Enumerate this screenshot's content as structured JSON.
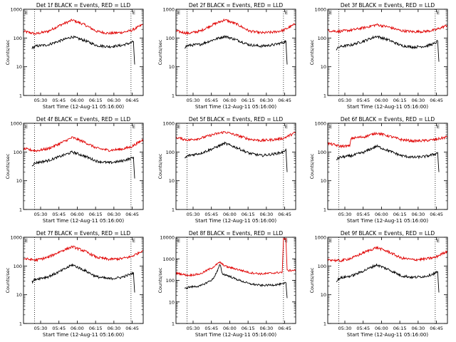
{
  "colors": {
    "events": "#000000",
    "lld": "#e00000",
    "axes": "#000000",
    "background": "#ffffff"
  },
  "common": {
    "ylabel": "Counts/sec",
    "xlabel": "Start Time (12-Aug-11 05:16:00)",
    "x_tick_labels": [
      "05:30",
      "05:45",
      "06:00",
      "06:15",
      "06:30",
      "06:45"
    ],
    "y_tick_labels": [
      "1",
      "10",
      "100",
      "1000"
    ],
    "y_tick_labels_det8": [
      "1",
      "10",
      "100",
      "1000",
      "10000"
    ],
    "marker_left": "E",
    "marker_right": "E"
  },
  "chart_data": [
    {
      "type": "line",
      "title": "Det 1f BLACK = Events, RED = LLD",
      "xlabel": "Start Time (12-Aug-11 05:16:00)",
      "ylabel": "Counts/sec",
      "xunits": "minutes after 05:16:00",
      "xlim": [
        0,
        98
      ],
      "ylim": [
        1,
        1000
      ],
      "yscale": "log",
      "vlines": [
        9,
        88
      ],
      "x_tick_values": [
        14,
        29,
        44,
        59,
        74,
        89
      ],
      "series": [
        {
          "name": "LLD",
          "color": "#e00000",
          "x": [
            0,
            10,
            20,
            30,
            40,
            50,
            60,
            70,
            80,
            88,
            93,
            98
          ],
          "values": [
            170,
            140,
            170,
            280,
            420,
            290,
            170,
            145,
            155,
            180,
            230,
            300
          ]
        },
        {
          "name": "Events",
          "color": "#000000",
          "x": [
            7,
            10,
            20,
            30,
            40,
            50,
            60,
            70,
            80,
            88,
            90,
            91
          ],
          "values": [
            45,
            52,
            58,
            80,
            110,
            82,
            55,
            50,
            55,
            68,
            75,
            12
          ]
        }
      ]
    },
    {
      "type": "line",
      "title": "Det 2f BLACK = Events, RED = LLD",
      "xlabel": "Start Time (12-Aug-11 05:16:00)",
      "ylabel": "Counts/sec",
      "xunits": "minutes after 05:16:00",
      "xlim": [
        0,
        98
      ],
      "ylim": [
        1,
        1000
      ],
      "yscale": "log",
      "vlines": [
        9,
        88
      ],
      "x_tick_values": [
        14,
        29,
        44,
        59,
        74,
        89
      ],
      "series": [
        {
          "name": "LLD",
          "color": "#e00000",
          "x": [
            0,
            10,
            20,
            30,
            40,
            50,
            60,
            70,
            80,
            88,
            93,
            98
          ],
          "values": [
            175,
            145,
            175,
            290,
            430,
            300,
            175,
            150,
            160,
            185,
            240,
            310
          ]
        },
        {
          "name": "Events",
          "color": "#000000",
          "x": [
            7,
            10,
            20,
            30,
            40,
            50,
            60,
            70,
            80,
            88,
            90,
            91
          ],
          "values": [
            48,
            55,
            60,
            85,
            115,
            85,
            58,
            52,
            58,
            70,
            78,
            12
          ]
        }
      ]
    },
    {
      "type": "line",
      "title": "Det 3f BLACK = Events, RED = LLD",
      "xlabel": "Start Time (12-Aug-11 05:16:00)",
      "ylabel": "Counts/sec",
      "xunits": "minutes after 05:16:00",
      "xlim": [
        0,
        98
      ],
      "ylim": [
        1,
        1000
      ],
      "yscale": "log",
      "vlines": [
        9,
        88
      ],
      "x_tick_values": [
        14,
        29,
        44,
        59,
        74,
        89
      ],
      "series": [
        {
          "name": "LLD",
          "color": "#e00000",
          "x": [
            0,
            10,
            20,
            30,
            40,
            50,
            60,
            70,
            80,
            88,
            93,
            98
          ],
          "values": [
            180,
            170,
            190,
            230,
            290,
            240,
            180,
            165,
            170,
            190,
            230,
            280
          ]
        },
        {
          "name": "Events",
          "color": "#000000",
          "x": [
            7,
            10,
            20,
            30,
            40,
            50,
            60,
            70,
            80,
            88,
            90,
            91
          ],
          "values": [
            40,
            50,
            58,
            80,
            115,
            85,
            55,
            48,
            52,
            65,
            80,
            15
          ]
        }
      ]
    },
    {
      "type": "line",
      "title": "Det 4f BLACK = Events, RED = LLD",
      "xlabel": "Start Time (12-Aug-11 05:16:00)",
      "ylabel": "Counts/sec",
      "xunits": "minutes after 05:16:00",
      "xlim": [
        0,
        98
      ],
      "ylim": [
        1,
        1000
      ],
      "yscale": "log",
      "vlines": [
        9,
        88
      ],
      "x_tick_values": [
        14,
        29,
        44,
        59,
        74,
        89
      ],
      "series": [
        {
          "name": "LLD",
          "color": "#e00000",
          "x": [
            0,
            10,
            20,
            30,
            40,
            50,
            60,
            70,
            80,
            88,
            93,
            98
          ],
          "values": [
            130,
            110,
            130,
            200,
            320,
            220,
            135,
            115,
            125,
            150,
            200,
            270
          ]
        },
        {
          "name": "Events",
          "color": "#000000",
          "x": [
            7,
            10,
            20,
            30,
            40,
            50,
            60,
            70,
            80,
            88,
            90,
            91
          ],
          "values": [
            35,
            42,
            50,
            70,
            100,
            72,
            48,
            42,
            48,
            60,
            68,
            12
          ]
        }
      ]
    },
    {
      "type": "line",
      "title": "Det 5f BLACK = Events, RED = LLD",
      "xlabel": "Start Time (12-Aug-11 05:16:00)",
      "ylabel": "Counts/sec",
      "xunits": "minutes after 05:16:00",
      "xlim": [
        0,
        98
      ],
      "ylim": [
        1,
        1000
      ],
      "yscale": "log",
      "vlines": [
        9,
        88
      ],
      "x_tick_values": [
        14,
        29,
        44,
        59,
        74,
        89
      ],
      "series": [
        {
          "name": "LLD",
          "color": "#e00000",
          "x": [
            0,
            10,
            20,
            30,
            40,
            50,
            60,
            70,
            80,
            88,
            93,
            98
          ],
          "values": [
            320,
            260,
            300,
            400,
            500,
            380,
            280,
            250,
            270,
            300,
            380,
            480
          ]
        },
        {
          "name": "Events",
          "color": "#000000",
          "x": [
            7,
            10,
            20,
            30,
            40,
            50,
            60,
            70,
            80,
            88,
            90,
            91
          ],
          "values": [
            60,
            75,
            90,
            130,
            200,
            140,
            90,
            75,
            85,
            100,
            130,
            20
          ]
        }
      ]
    },
    {
      "type": "line",
      "title": "Det 6f BLACK = Events, RED = LLD",
      "xlabel": "Start Time (12-Aug-11 05:16:00)",
      "ylabel": "Counts/sec",
      "xunits": "minutes after 05:16:00",
      "xlim": [
        0,
        98
      ],
      "ylim": [
        1,
        1000
      ],
      "yscale": "log",
      "vlines": [
        9,
        88
      ],
      "x_tick_values": [
        14,
        29,
        44,
        59,
        74,
        89
      ],
      "series": [
        {
          "name": "LLD",
          "color": "#e00000",
          "x": [
            0,
            10,
            18,
            19,
            30,
            40,
            50,
            60,
            70,
            80,
            88,
            93,
            98
          ],
          "values": [
            200,
            160,
            160,
            300,
            340,
            460,
            360,
            270,
            240,
            250,
            270,
            300,
            340
          ]
        },
        {
          "name": "Events",
          "color": "#000000",
          "x": [
            7,
            10,
            20,
            30,
            40,
            50,
            60,
            70,
            80,
            88,
            90,
            91
          ],
          "values": [
            55,
            65,
            75,
            100,
            160,
            110,
            75,
            65,
            70,
            85,
            95,
            20
          ]
        }
      ]
    },
    {
      "type": "line",
      "title": "Det 7f BLACK = Events, RED = LLD",
      "xlabel": "Start Time (12-Aug-11 05:16:00)",
      "ylabel": "Counts/sec",
      "xunits": "minutes after 05:16:00",
      "xlim": [
        0,
        98
      ],
      "ylim": [
        1,
        1000
      ],
      "yscale": "log",
      "vlines": [
        9,
        88
      ],
      "x_tick_values": [
        14,
        29,
        44,
        59,
        74,
        89
      ],
      "series": [
        {
          "name": "LLD",
          "color": "#e00000",
          "x": [
            0,
            10,
            20,
            30,
            40,
            50,
            60,
            70,
            80,
            88,
            93,
            98
          ],
          "values": [
            180,
            160,
            200,
            320,
            470,
            330,
            200,
            170,
            180,
            210,
            270,
            360
          ]
        },
        {
          "name": "Events",
          "color": "#000000",
          "x": [
            7,
            10,
            20,
            30,
            40,
            50,
            60,
            70,
            80,
            88,
            90,
            91
          ],
          "values": [
            28,
            35,
            42,
            65,
            110,
            70,
            42,
            36,
            40,
            52,
            60,
            12
          ]
        }
      ]
    },
    {
      "type": "line",
      "title": "Det 8f BLACK = Events, RED = LLD",
      "xlabel": "Start Time (12-Aug-11 05:16:00)",
      "ylabel": "Counts/sec",
      "xunits": "minutes after 05:16:00",
      "xlim": [
        0,
        98
      ],
      "ylim": [
        1,
        10000
      ],
      "yscale": "log",
      "vlines": [
        9,
        88
      ],
      "x_tick_values": [
        14,
        29,
        44,
        59,
        74,
        89
      ],
      "series": [
        {
          "name": "LLD",
          "color": "#e00000",
          "x": [
            0,
            10,
            20,
            30,
            36,
            38,
            42,
            50,
            60,
            70,
            80,
            87,
            88,
            89,
            90,
            91,
            98
          ],
          "values": [
            220,
            170,
            200,
            400,
            700,
            550,
            420,
            330,
            230,
            200,
            220,
            240,
            9000,
            8000,
            9000,
            280,
            300
          ]
        },
        {
          "name": "Events",
          "color": "#000000",
          "x": [
            7,
            10,
            20,
            30,
            34,
            36,
            38,
            42,
            50,
            60,
            70,
            80,
            88,
            90,
            91
          ],
          "values": [
            40,
            48,
            55,
            110,
            280,
            550,
            200,
            170,
            110,
            70,
            58,
            62,
            68,
            78,
            15
          ]
        }
      ]
    },
    {
      "type": "line",
      "title": "Det 9f BLACK = Events, RED = LLD",
      "xlabel": "Start Time (12-Aug-11 05:16:00)",
      "ylabel": "Counts/sec",
      "xunits": "minutes after 05:16:00",
      "xlim": [
        0,
        98
      ],
      "ylim": [
        1,
        1000
      ],
      "yscale": "log",
      "vlines": [
        9,
        88
      ],
      "x_tick_values": [
        14,
        29,
        44,
        59,
        74,
        89
      ],
      "series": [
        {
          "name": "LLD",
          "color": "#e00000",
          "x": [
            0,
            10,
            20,
            30,
            40,
            50,
            60,
            70,
            80,
            88,
            93,
            98
          ],
          "values": [
            170,
            150,
            190,
            300,
            440,
            310,
            190,
            165,
            175,
            200,
            260,
            330
          ]
        },
        {
          "name": "Events",
          "color": "#000000",
          "x": [
            7,
            10,
            20,
            30,
            40,
            50,
            60,
            70,
            80,
            88,
            90,
            91
          ],
          "values": [
            30,
            38,
            46,
            70,
            110,
            75,
            46,
            40,
            44,
            56,
            64,
            12
          ]
        }
      ]
    }
  ]
}
